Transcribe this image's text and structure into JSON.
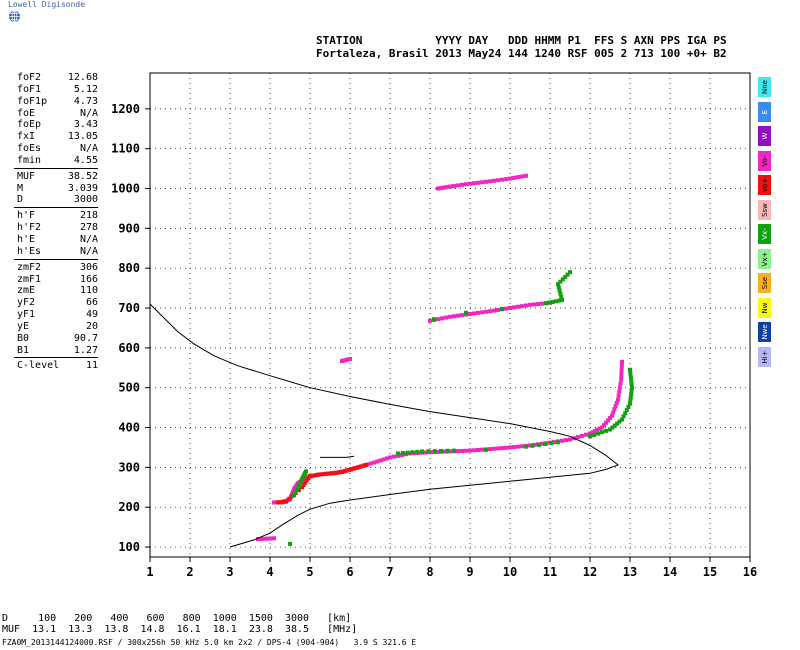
{
  "header": {
    "logo": "Lowell Digisonde",
    "line1": "STATION           YYYY DAY   DDD HHMM P1  FFS S AXN PPS IGA PS",
    "line2": "Fortaleza, Brasil 2013 May24 144 1240 RSF 005 2 713 100 +0+ B2"
  },
  "params": [
    {
      "name": "foF2",
      "value": "12.68"
    },
    {
      "name": "foF1",
      "value": "5.12"
    },
    {
      "name": "foF1p",
      "value": "4.73"
    },
    {
      "name": "foE",
      "value": "N/A"
    },
    {
      "name": "foEp",
      "value": "3.43"
    },
    {
      "name": "fxI",
      "value": "13.05"
    },
    {
      "name": "foEs",
      "value": "N/A"
    },
    {
      "name": "fmin",
      "value": "4.55",
      "sep": true
    },
    {
      "name": "MUF",
      "value": "38.52"
    },
    {
      "name": "M",
      "value": "3.039"
    },
    {
      "name": "D",
      "value": "3000",
      "sep": true
    },
    {
      "name": "h'F",
      "value": "218"
    },
    {
      "name": "h'F2",
      "value": "278"
    },
    {
      "name": "h'E",
      "value": "N/A"
    },
    {
      "name": "h'Es",
      "value": "N/A",
      "sep": true
    },
    {
      "name": "zmF2",
      "value": "306"
    },
    {
      "name": "zmF1",
      "value": "166"
    },
    {
      "name": "zmE",
      "value": "110"
    },
    {
      "name": "yF2",
      "value": "66"
    },
    {
      "name": "yF1",
      "value": "49"
    },
    {
      "name": "yE",
      "value": "20"
    },
    {
      "name": "B0",
      "value": "90.7"
    },
    {
      "name": "B1",
      "value": "1.27",
      "sep": true
    },
    {
      "name": "C-level",
      "value": "11"
    }
  ],
  "legend": [
    {
      "label": "Nne",
      "color": "#40e8f0"
    },
    {
      "label": "E",
      "color": "#3c8cf0"
    },
    {
      "label": "W",
      "color": "#9010c0"
    },
    {
      "label": "Vo-",
      "color": "#f028c0"
    },
    {
      "label": "Vo+",
      "color": "#f01010"
    },
    {
      "label": "Ssw",
      "color": "#f8b8b8"
    },
    {
      "label": "Vx-",
      "color": "#10a010"
    },
    {
      "label": "Vx+",
      "color": "#90f090"
    },
    {
      "label": "Sse",
      "color": "#f8b020"
    },
    {
      "label": "Nw",
      "color": "#f8f818"
    },
    {
      "label": "Nwe",
      "color": "#1040a0"
    },
    {
      "label": "Hi+",
      "color": "#b8b8f8"
    }
  ],
  "muf_table": {
    "d_row": "D     100   200   400   600   800  1000  1500  3000   [km]",
    "muf_row": "MUF  13.1  13.3  13.8  14.8  16.1  18.1  23.8  38.5   [MHz]"
  },
  "footer": "FZA0M_2013144124000.RSF / 300x256h 50 kHz 5.0 km 2x2 / DPS-4 (904-904)   3.9 S 321.6 E",
  "chart_data": {
    "type": "scatter",
    "title": "",
    "xlabel": "",
    "ylabel": "",
    "xlim": [
      1,
      16
    ],
    "ylim": [
      75,
      1290
    ],
    "xticks": [
      1,
      2,
      3,
      4,
      5,
      6,
      7,
      8,
      9,
      10,
      11,
      12,
      13,
      14,
      15,
      16
    ],
    "yticks": [
      100,
      200,
      300,
      400,
      500,
      600,
      700,
      800,
      900,
      1000,
      1100,
      1200
    ],
    "grid": true,
    "profile_curve": [
      [
        1.0,
        710
      ],
      [
        1.3,
        680
      ],
      [
        1.7,
        640
      ],
      [
        2.1,
        610
      ],
      [
        2.6,
        580
      ],
      [
        3.2,
        555
      ],
      [
        4.0,
        530
      ],
      [
        5.0,
        500
      ],
      [
        6.0,
        478
      ],
      [
        7.0,
        458
      ],
      [
        8.0,
        440
      ],
      [
        9.0,
        425
      ],
      [
        10.0,
        410
      ],
      [
        11.0,
        390
      ],
      [
        11.5,
        378
      ],
      [
        12.0,
        355
      ],
      [
        12.4,
        330
      ],
      [
        12.7,
        306
      ],
      [
        12.4,
        295
      ],
      [
        12.0,
        285
      ],
      [
        11.0,
        275
      ],
      [
        10.0,
        265
      ],
      [
        9.0,
        255
      ],
      [
        8.0,
        245
      ],
      [
        7.0,
        232
      ],
      [
        6.0,
        218
      ],
      [
        5.5,
        210
      ],
      [
        5.0,
        195
      ],
      [
        4.7,
        180
      ],
      [
        4.3,
        155
      ],
      [
        4.0,
        135
      ],
      [
        3.6,
        118
      ],
      [
        3.0,
        100
      ]
    ],
    "thin_trace": [
      [
        5.25,
        325
      ],
      [
        5.9,
        325
      ],
      [
        6.1,
        328
      ]
    ],
    "series": [
      {
        "name": "Vo-",
        "color": "#f028c0",
        "points": [
          [
            4.1,
            212
          ],
          [
            4.3,
            212
          ],
          [
            4.5,
            220
          ],
          [
            4.6,
            245
          ],
          [
            4.7,
            260
          ],
          [
            4.9,
            275
          ],
          [
            5.2,
            282
          ],
          [
            5.6,
            285
          ],
          [
            5.9,
            292
          ],
          [
            6.2,
            300
          ],
          [
            6.6,
            312
          ],
          [
            7.0,
            325
          ],
          [
            7.5,
            335
          ],
          [
            8.0,
            338
          ],
          [
            8.5,
            340
          ],
          [
            9.0,
            342
          ],
          [
            9.5,
            346
          ],
          [
            10.0,
            350
          ],
          [
            10.5,
            355
          ],
          [
            11.0,
            362
          ],
          [
            11.5,
            370
          ],
          [
            12.0,
            385
          ],
          [
            12.3,
            400
          ],
          [
            12.55,
            430
          ],
          [
            12.7,
            470
          ],
          [
            12.78,
            520
          ],
          [
            12.8,
            565
          ],
          [
            8.0,
            668
          ],
          [
            8.5,
            678
          ],
          [
            9.0,
            685
          ],
          [
            9.5,
            692
          ],
          [
            10.0,
            700
          ],
          [
            10.5,
            708
          ],
          [
            11.0,
            713
          ],
          [
            8.2,
            1000
          ],
          [
            8.5,
            1005
          ],
          [
            9.0,
            1012
          ],
          [
            9.5,
            1018
          ],
          [
            10.0,
            1025
          ],
          [
            10.4,
            1032
          ],
          [
            5.8,
            567
          ],
          [
            6.0,
            572
          ],
          [
            3.7,
            120
          ],
          [
            4.1,
            122
          ]
        ]
      },
      {
        "name": "Vo+",
        "color": "#f01010",
        "points": [
          [
            4.2,
            212
          ],
          [
            4.4,
            214
          ],
          [
            4.8,
            250
          ],
          [
            5.0,
            278
          ],
          [
            5.4,
            284
          ],
          [
            5.8,
            288
          ],
          [
            6.1,
            297
          ],
          [
            6.4,
            306
          ]
        ]
      },
      {
        "name": "Vx-",
        "color": "#10a010",
        "points": [
          [
            4.6,
            230
          ],
          [
            4.8,
            270
          ],
          [
            4.9,
            290
          ],
          [
            7.2,
            335
          ],
          [
            7.8,
            340
          ],
          [
            8.6,
            342
          ],
          [
            9.4,
            344
          ],
          [
            10.4,
            352
          ],
          [
            11.2,
            363
          ],
          [
            12.0,
            378
          ],
          [
            12.5,
            395
          ],
          [
            12.8,
            420
          ],
          [
            13.0,
            460
          ],
          [
            13.05,
            500
          ],
          [
            13.0,
            545
          ],
          [
            8.1,
            672
          ],
          [
            8.9,
            688
          ],
          [
            9.8,
            698
          ],
          [
            10.9,
            712
          ],
          [
            11.3,
            720
          ],
          [
            11.2,
            760
          ],
          [
            11.5,
            790
          ],
          [
            4.5,
            108
          ]
        ]
      }
    ]
  }
}
